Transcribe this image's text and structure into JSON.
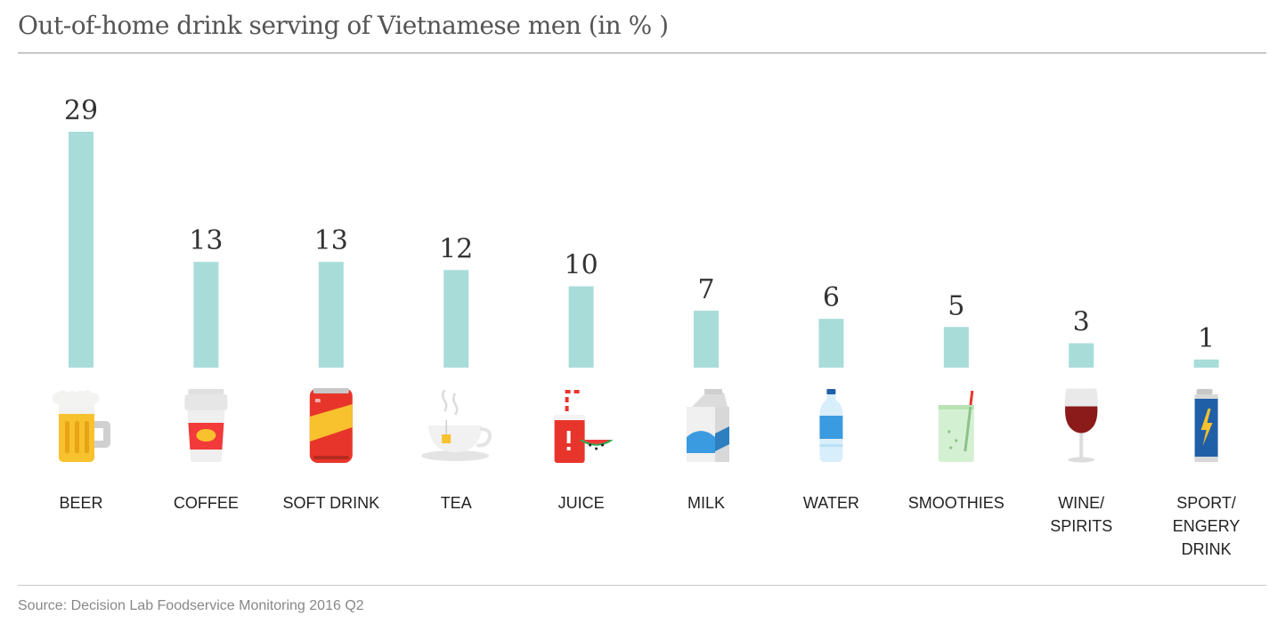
{
  "title": "Out-of-home drink serving of Vietnamese men (in % )",
  "source": "Source: Decision Lab Foodservice Monitoring 2016 Q2",
  "colors": {
    "bar": "#a8dcd9"
  },
  "chart_data": {
    "type": "bar",
    "title": "Out-of-home drink serving of Vietnamese men (in % )",
    "categories": [
      "BEER",
      "COFFEE",
      "SOFT DRINK",
      "TEA",
      "JUICE",
      "MILK",
      "WATER",
      "SMOOTHIES",
      "WINE/ SPIRITS",
      "SPORT/ ENGERY DRINK"
    ],
    "category_lines": [
      [
        "BEER"
      ],
      [
        "COFFEE"
      ],
      [
        "SOFT DRINK"
      ],
      [
        "TEA"
      ],
      [
        "JUICE"
      ],
      [
        "MILK"
      ],
      [
        "WATER"
      ],
      [
        "SMOOTHIES"
      ],
      [
        "WINE/",
        "SPIRITS"
      ],
      [
        "SPORT/",
        "ENGERY",
        "DRINK"
      ]
    ],
    "values": [
      29,
      13,
      13,
      12,
      10,
      7,
      6,
      5,
      3,
      1
    ],
    "icons": [
      "beer-mug-icon",
      "coffee-cup-icon",
      "soda-can-icon",
      "tea-cup-icon",
      "juice-glass-icon",
      "milk-carton-icon",
      "water-bottle-icon",
      "smoothie-glass-icon",
      "wine-glass-icon",
      "energy-drink-can-icon"
    ],
    "xlabel": "",
    "ylabel": "",
    "ylim": [
      0,
      29
    ],
    "grid": false,
    "legend": "none"
  }
}
